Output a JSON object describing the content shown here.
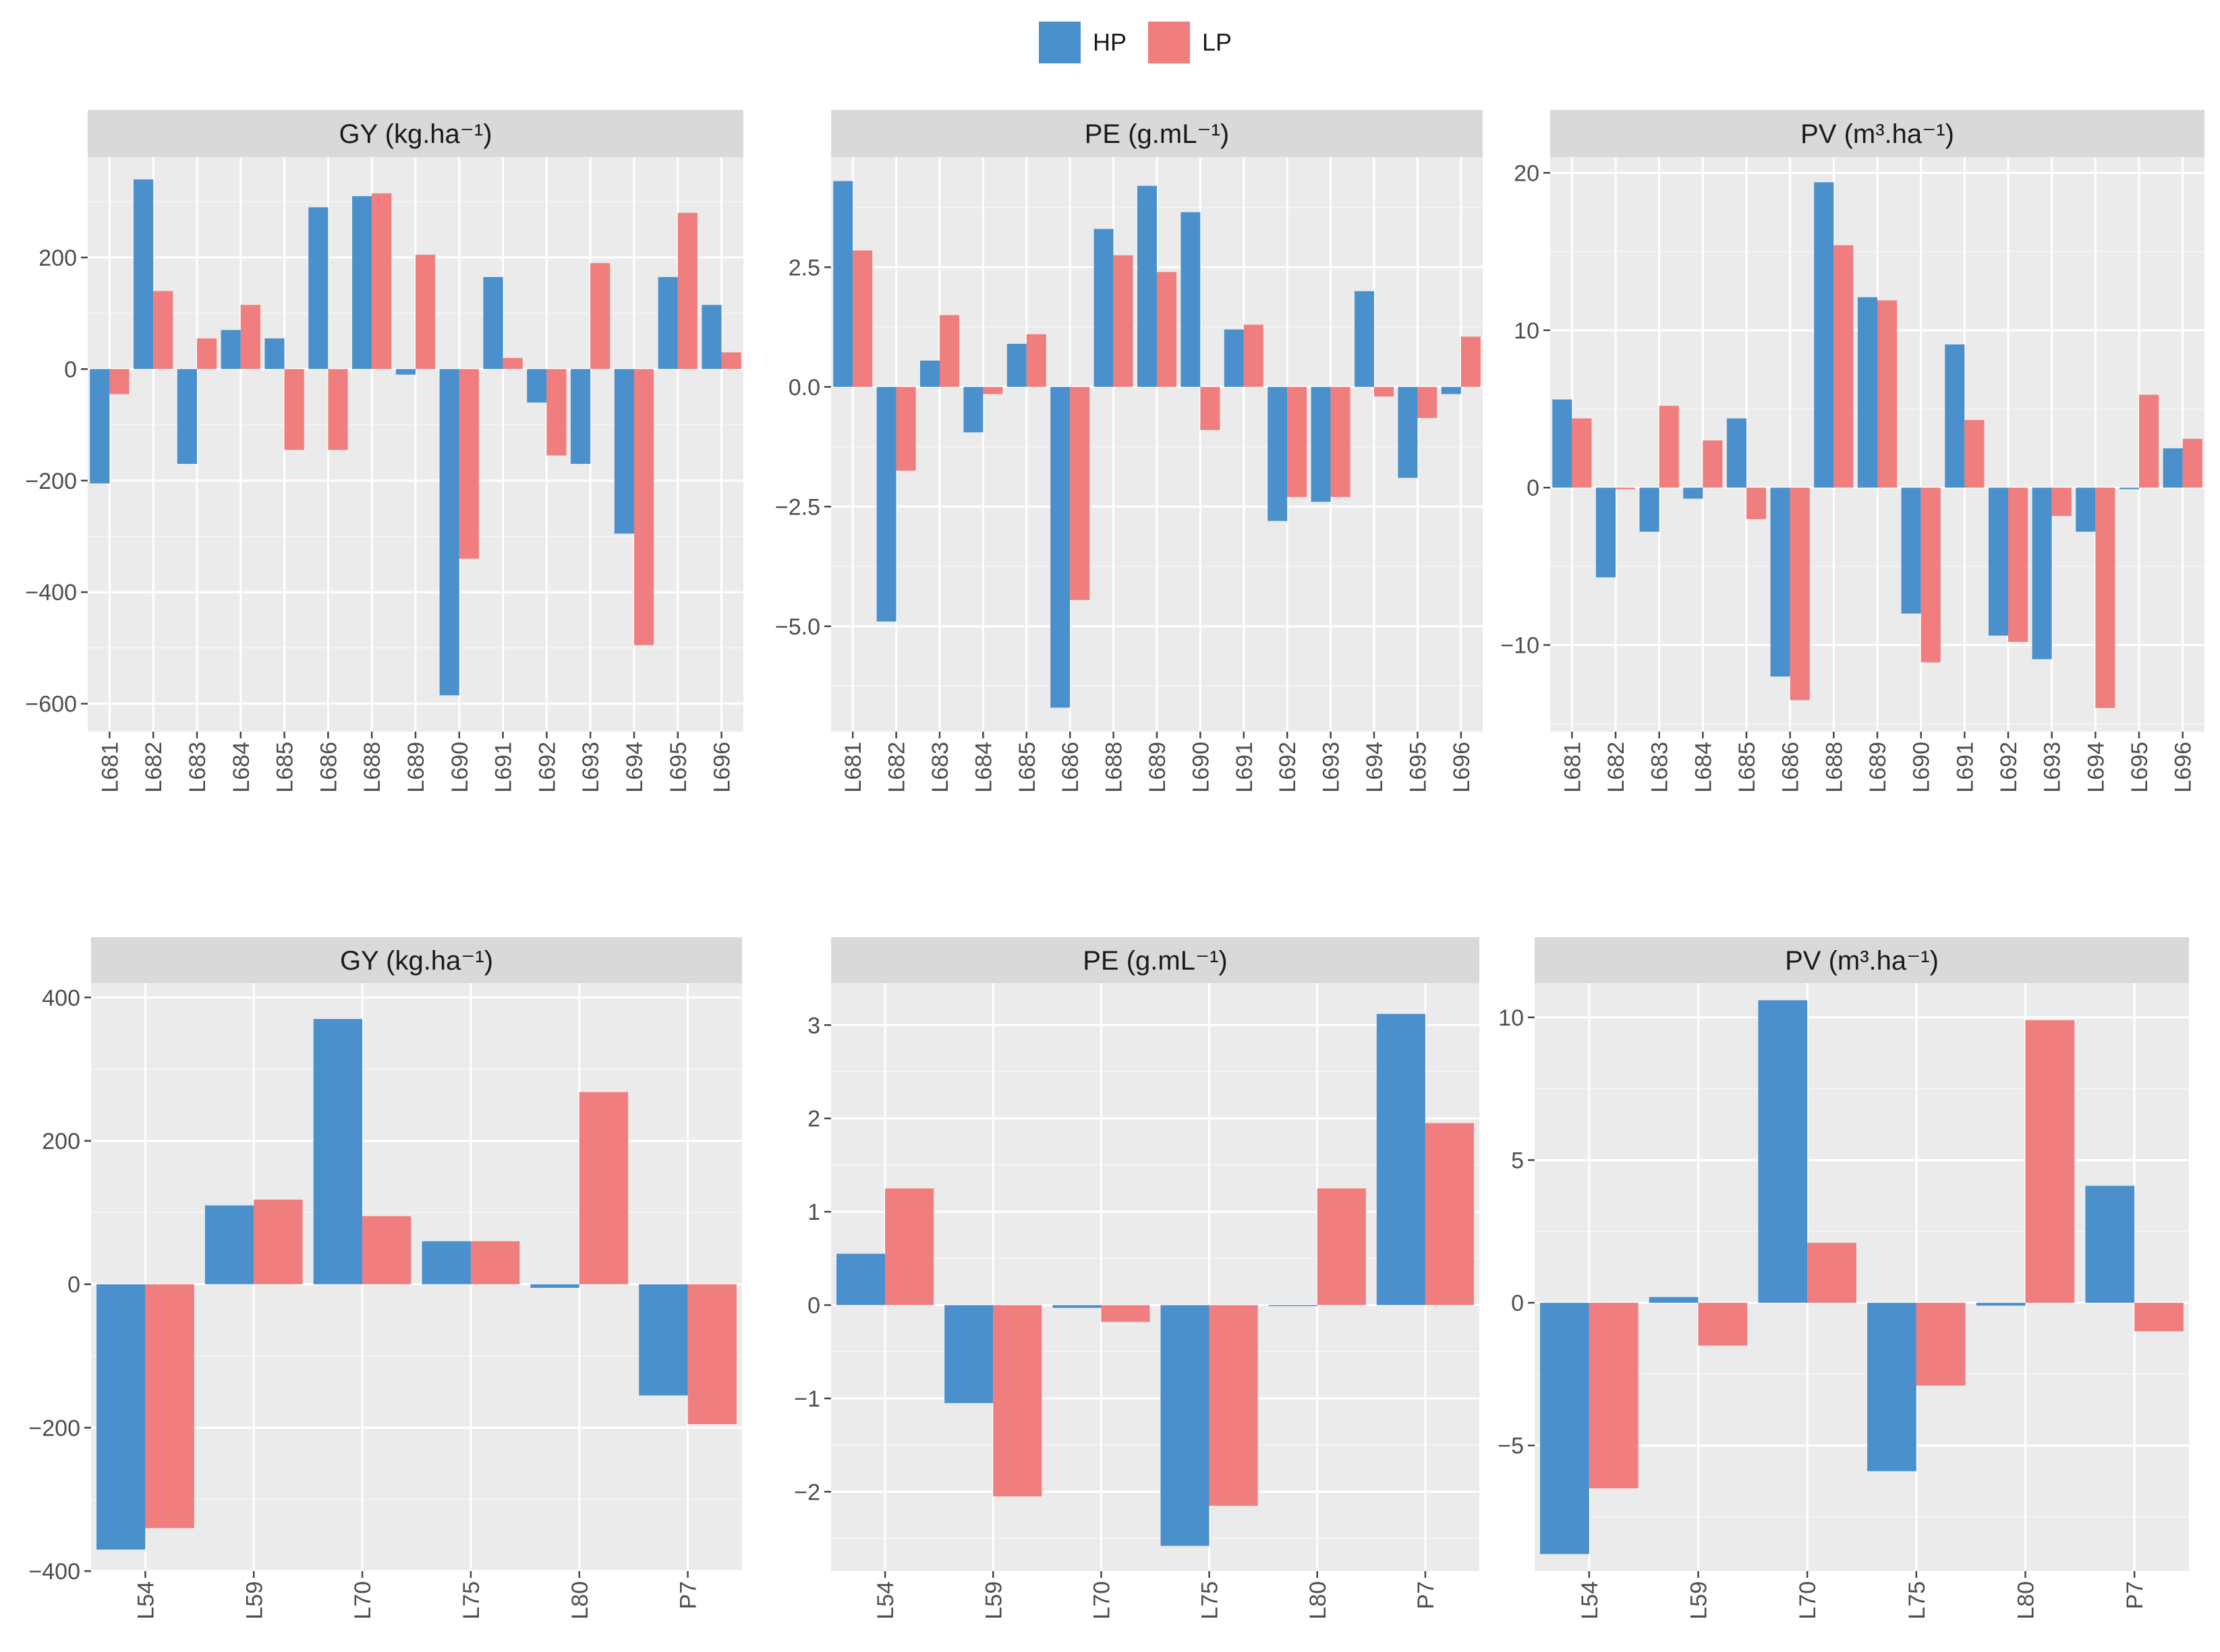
{
  "legend": {
    "items": [
      {
        "name": "HP",
        "color": "#4a90cc"
      },
      {
        "name": "LP",
        "color": "#f07e7e"
      }
    ]
  },
  "chart_data": [
    {
      "type": "bar",
      "title": "GY (kg.ha⁻¹)",
      "categories": [
        "L681",
        "L682",
        "L683",
        "L684",
        "L685",
        "L686",
        "L688",
        "L689",
        "L690",
        "L691",
        "L692",
        "L693",
        "L694",
        "L695",
        "L696"
      ],
      "series": [
        {
          "name": "HP",
          "values": [
            -205,
            340,
            -170,
            70,
            55,
            290,
            310,
            -10,
            -585,
            165,
            -60,
            -170,
            -295,
            165,
            115
          ]
        },
        {
          "name": "LP",
          "values": [
            -45,
            140,
            55,
            115,
            -145,
            -145,
            315,
            205,
            -340,
            20,
            -155,
            190,
            -495,
            280,
            30
          ]
        }
      ],
      "ylim": [
        -650,
        380
      ],
      "yticks": [
        -600,
        -400,
        -200,
        0,
        200
      ],
      "grid": true
    },
    {
      "type": "bar",
      "title": "PE (g.mL⁻¹)",
      "categories": [
        "L681",
        "L682",
        "L683",
        "L684",
        "L685",
        "L686",
        "L688",
        "L689",
        "L690",
        "L691",
        "L692",
        "L693",
        "L694",
        "L695",
        "L696"
      ],
      "series": [
        {
          "name": "HP",
          "values": [
            4.3,
            -4.9,
            0.55,
            -0.95,
            0.9,
            -6.7,
            3.3,
            4.2,
            3.65,
            1.2,
            -2.8,
            -2.4,
            2.0,
            -1.9,
            -0.15
          ]
        },
        {
          "name": "LP",
          "values": [
            2.85,
            -1.75,
            1.5,
            -0.15,
            1.1,
            -4.45,
            2.75,
            2.4,
            -0.9,
            1.3,
            -2.3,
            -2.3,
            -0.2,
            -0.65,
            1.05
          ]
        }
      ],
      "ylim": [
        -7.2,
        4.8
      ],
      "yticks": [
        -5.0,
        -2.5,
        0.0,
        2.5
      ],
      "grid": true
    },
    {
      "type": "bar",
      "title": "PV (m³.ha⁻¹)",
      "categories": [
        "L681",
        "L682",
        "L683",
        "L684",
        "L685",
        "L686",
        "L688",
        "L689",
        "L690",
        "L691",
        "L692",
        "L693",
        "L694",
        "L695",
        "L696"
      ],
      "series": [
        {
          "name": "HP",
          "values": [
            5.6,
            -5.7,
            -2.8,
            -0.7,
            4.4,
            -12.0,
            19.4,
            12.1,
            -8.0,
            9.1,
            -9.4,
            -10.9,
            -2.8,
            -0.1,
            2.5
          ]
        },
        {
          "name": "LP",
          "values": [
            4.4,
            -0.1,
            5.2,
            3.0,
            -2.0,
            -13.5,
            15.4,
            11.9,
            -11.1,
            4.3,
            -9.8,
            -1.8,
            -14.0,
            5.9,
            3.1
          ]
        }
      ],
      "ylim": [
        -15.5,
        21
      ],
      "yticks": [
        -10,
        0,
        10,
        20
      ],
      "grid": true
    },
    {
      "type": "bar",
      "title": "GY (kg.ha⁻¹)",
      "categories": [
        "L54",
        "L59",
        "L70",
        "L75",
        "L80",
        "P7"
      ],
      "series": [
        {
          "name": "HP",
          "values": [
            -370,
            110,
            370,
            60,
            -5,
            -155
          ]
        },
        {
          "name": "LP",
          "values": [
            -340,
            118,
            95,
            60,
            268,
            -195
          ]
        }
      ],
      "ylim": [
        -400,
        420
      ],
      "yticks": [
        -400,
        -200,
        0,
        200,
        400
      ],
      "grid": true
    },
    {
      "type": "bar",
      "title": "PE (g.mL⁻¹)",
      "categories": [
        "L54",
        "L59",
        "L70",
        "L75",
        "L80",
        "P7"
      ],
      "series": [
        {
          "name": "HP",
          "values": [
            0.55,
            -1.05,
            -0.03,
            -2.58,
            0.0,
            3.12
          ]
        },
        {
          "name": "LP",
          "values": [
            1.25,
            -2.05,
            -0.18,
            -2.15,
            1.25,
            1.95
          ]
        }
      ],
      "ylim": [
        -2.85,
        3.45
      ],
      "yticks": [
        -2,
        -1,
        0,
        1,
        2,
        3
      ],
      "grid": true
    },
    {
      "type": "bar",
      "title": "PV (m³.ha⁻¹)",
      "categories": [
        "L54",
        "L59",
        "L70",
        "L75",
        "L80",
        "P7"
      ],
      "series": [
        {
          "name": "HP",
          "values": [
            -8.8,
            0.2,
            10.6,
            -5.9,
            -0.1,
            4.1
          ]
        },
        {
          "name": "LP",
          "values": [
            -6.5,
            -1.5,
            2.1,
            -2.9,
            9.9,
            -1.0
          ]
        }
      ],
      "ylim": [
        -9.4,
        11.2
      ],
      "yticks": [
        -5,
        0,
        5,
        10
      ],
      "grid": true
    }
  ]
}
